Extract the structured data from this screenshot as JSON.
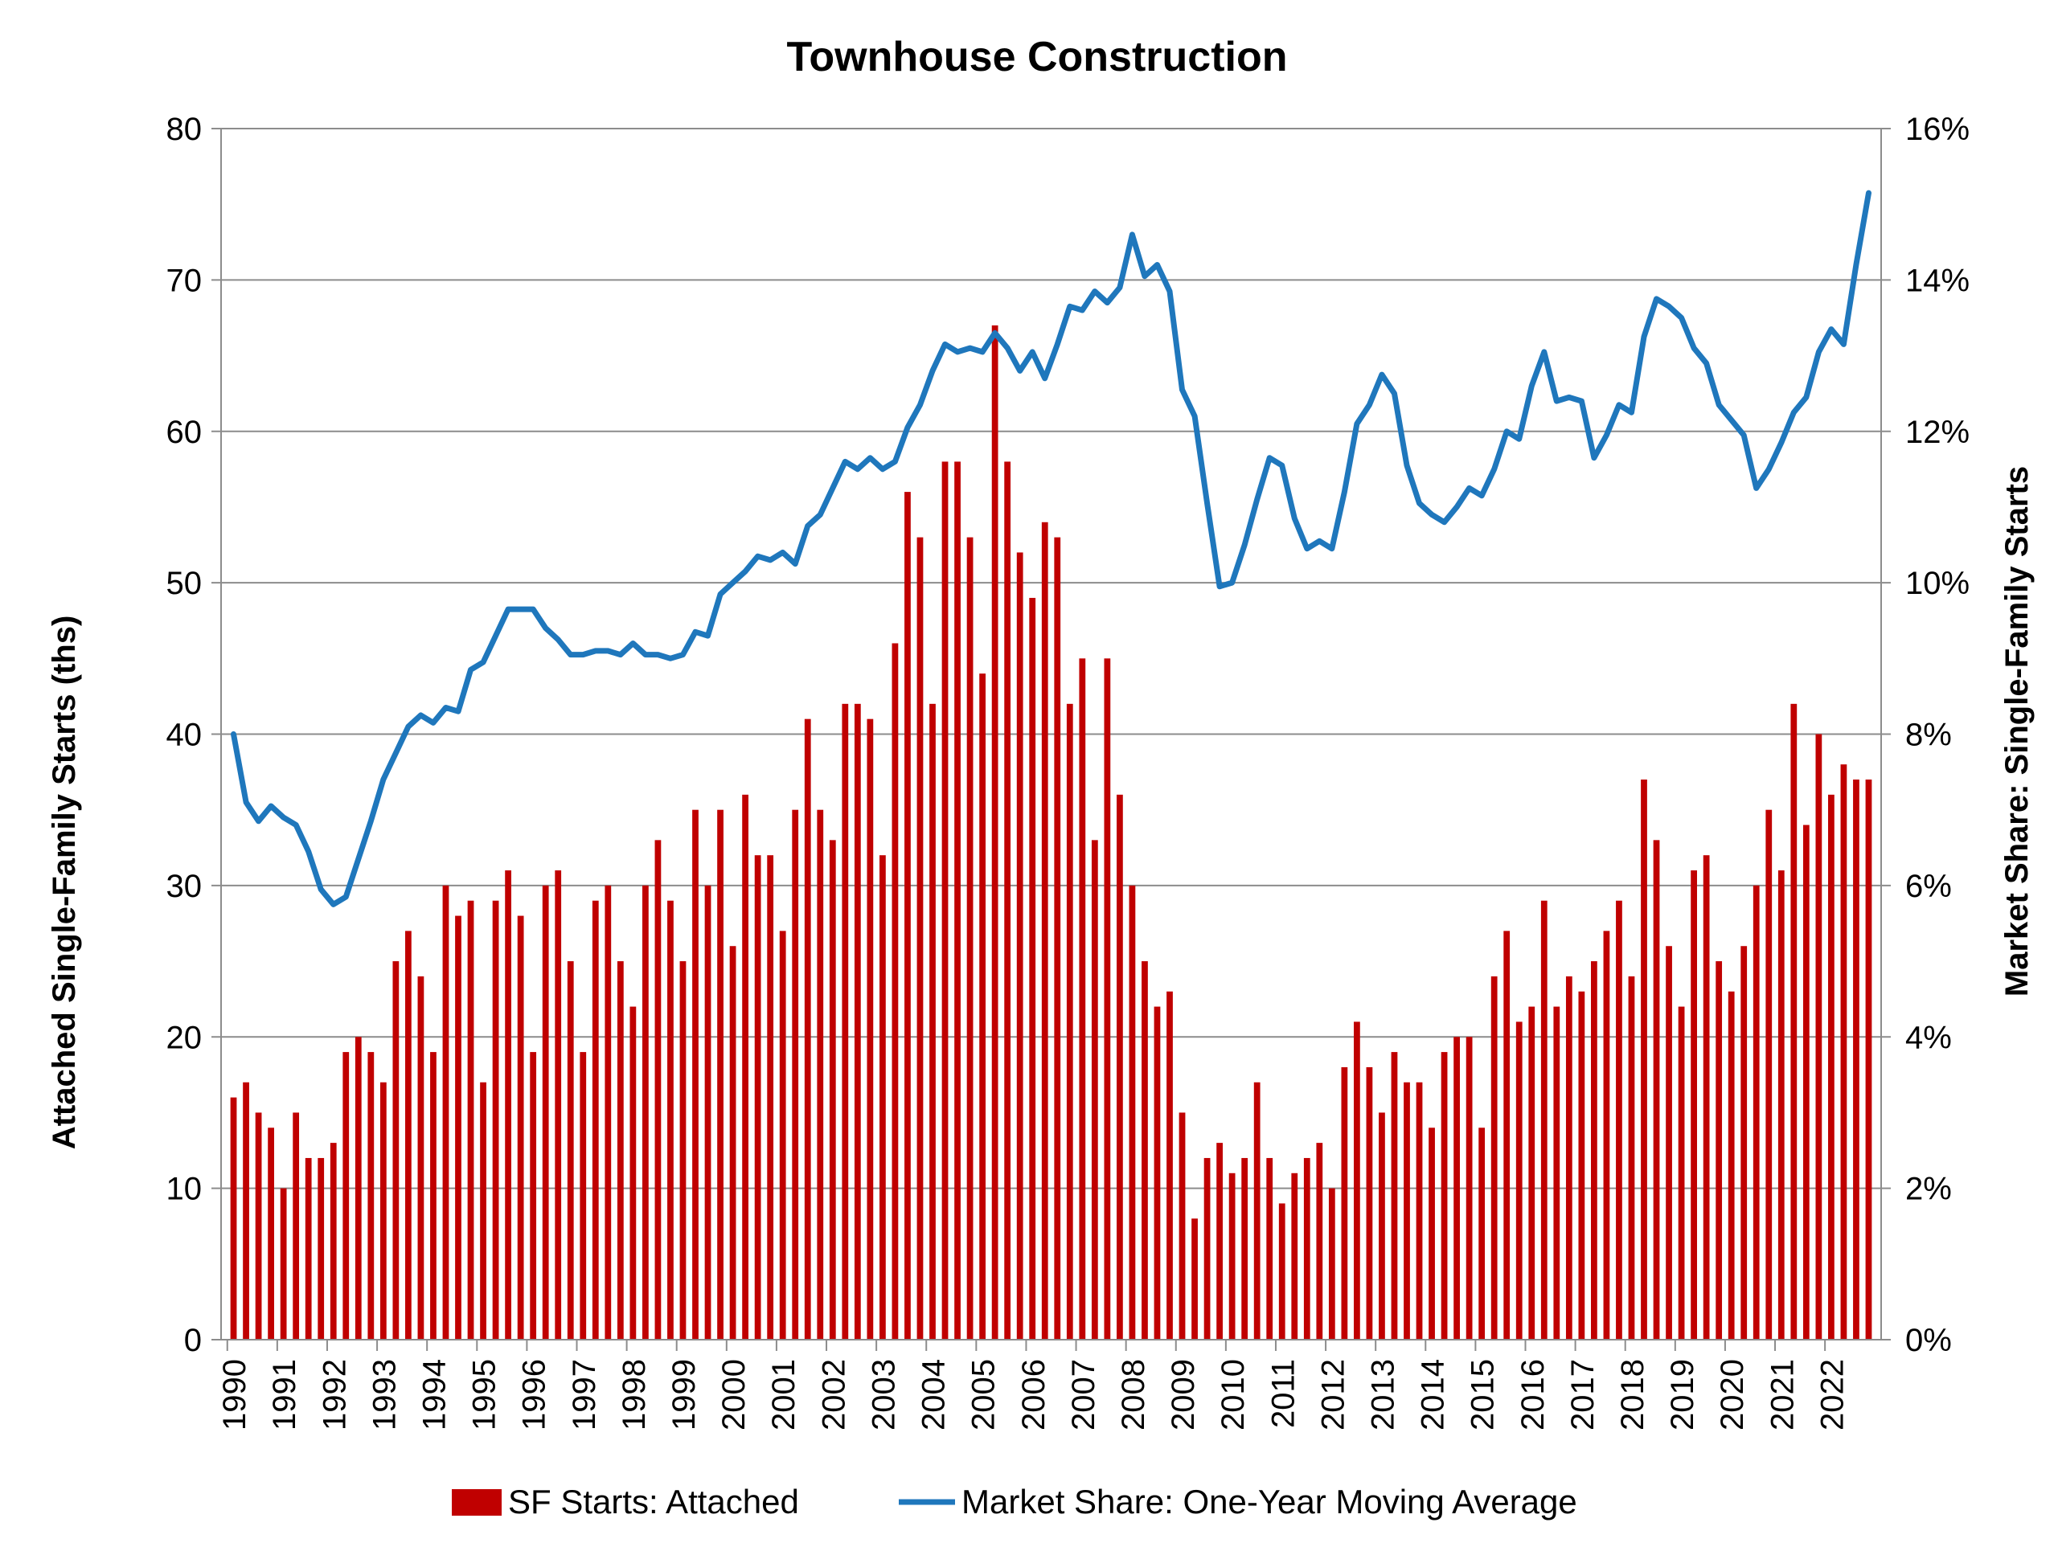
{
  "chart_data": {
    "type": "bar",
    "title": "Townhouse Construction",
    "ylabel": "Attached Single-Family Starts (ths)",
    "y2label": "Market Share: Single-Family Starts",
    "ylim": [
      0,
      80
    ],
    "y2lim": [
      0,
      16
    ],
    "yticks": [
      "0",
      "10",
      "20",
      "30",
      "40",
      "50",
      "60",
      "70",
      "80"
    ],
    "y2ticks": [
      "0%",
      "2%",
      "4%",
      "6%",
      "8%",
      "10%",
      "12%",
      "14%",
      "16%"
    ],
    "xlabels": [
      "1990",
      "1991",
      "1992",
      "1993",
      "1994",
      "1995",
      "1996",
      "1997",
      "1998",
      "1999",
      "2000",
      "2001",
      "2002",
      "2003",
      "2004",
      "2005",
      "2006",
      "2007",
      "2008",
      "2009",
      "2010",
      "2011",
      "2012",
      "2013",
      "2014",
      "2015",
      "2016",
      "2017",
      "2018",
      "2019",
      "2020",
      "2021",
      "2022"
    ],
    "grid": true,
    "legend_position": "bottom",
    "series": [
      {
        "name": "SF Starts: Attached",
        "type": "bar",
        "axis": "left",
        "color": "#C00000",
        "values": [
          16,
          17,
          15,
          14,
          10,
          15,
          12,
          12,
          13,
          19,
          20,
          19,
          17,
          25,
          27,
          24,
          19,
          30,
          28,
          29,
          17,
          29,
          31,
          28,
          19,
          30,
          31,
          25,
          19,
          29,
          30,
          25,
          22,
          30,
          33,
          29,
          25,
          35,
          30,
          35,
          26,
          36,
          32,
          32,
          27,
          35,
          41,
          35,
          33,
          42,
          42,
          41,
          32,
          46,
          56,
          53,
          42,
          58,
          58,
          53,
          44,
          67,
          58,
          52,
          49,
          54,
          53,
          42,
          45,
          33,
          45,
          36,
          30,
          25,
          22,
          23,
          15,
          8,
          12,
          13,
          11,
          12,
          17,
          12,
          9,
          11,
          12,
          13,
          10,
          18,
          21,
          18,
          15,
          19,
          17,
          17,
          14,
          19,
          20,
          20,
          14,
          24,
          27,
          21,
          22,
          29,
          22,
          24,
          23,
          25,
          27,
          29,
          24,
          37,
          33,
          26,
          22,
          31,
          32,
          25,
          23,
          26,
          30,
          35,
          31,
          42,
          34,
          40,
          36,
          38,
          37,
          37
        ]
      },
      {
        "name": "Market Share: One-Year Moving Average",
        "type": "line",
        "axis": "right",
        "unit": "%",
        "color": "#1F77BC",
        "values": [
          8.0,
          7.1,
          6.85,
          7.05,
          6.9,
          6.8,
          6.45,
          5.95,
          5.75,
          5.85,
          6.35,
          6.85,
          7.4,
          7.75,
          8.1,
          8.25,
          8.15,
          8.35,
          8.3,
          8.85,
          8.95,
          9.3,
          9.65,
          9.65,
          9.65,
          9.4,
          9.25,
          9.05,
          9.05,
          9.1,
          9.1,
          9.05,
          9.2,
          9.05,
          9.05,
          9.0,
          9.05,
          9.35,
          9.3,
          9.85,
          10.0,
          10.15,
          10.35,
          10.3,
          10.4,
          10.25,
          10.75,
          10.9,
          11.25,
          11.6,
          11.5,
          11.65,
          11.5,
          11.6,
          12.05,
          12.35,
          12.8,
          13.15,
          13.05,
          13.1,
          13.05,
          13.3,
          13.1,
          12.8,
          13.05,
          12.7,
          13.15,
          13.65,
          13.6,
          13.85,
          13.7,
          13.9,
          14.6,
          14.05,
          14.2,
          13.85,
          12.55,
          12.2,
          11.05,
          9.95,
          10.0,
          10.5,
          11.1,
          11.65,
          11.55,
          10.85,
          10.45,
          10.55,
          10.45,
          11.2,
          12.1,
          12.35,
          12.75,
          12.5,
          11.55,
          11.05,
          10.9,
          10.8,
          11.0,
          11.25,
          11.15,
          11.5,
          12.0,
          11.9,
          12.6,
          13.05,
          12.4,
          12.45,
          12.4,
          11.65,
          11.95,
          12.35,
          12.25,
          13.25,
          13.75,
          13.65,
          13.5,
          13.1,
          12.9,
          12.35,
          12.15,
          11.95,
          11.25,
          11.5,
          11.85,
          12.25,
          12.45,
          13.05,
          13.35,
          13.15,
          14.2,
          15.15
        ]
      }
    ]
  }
}
